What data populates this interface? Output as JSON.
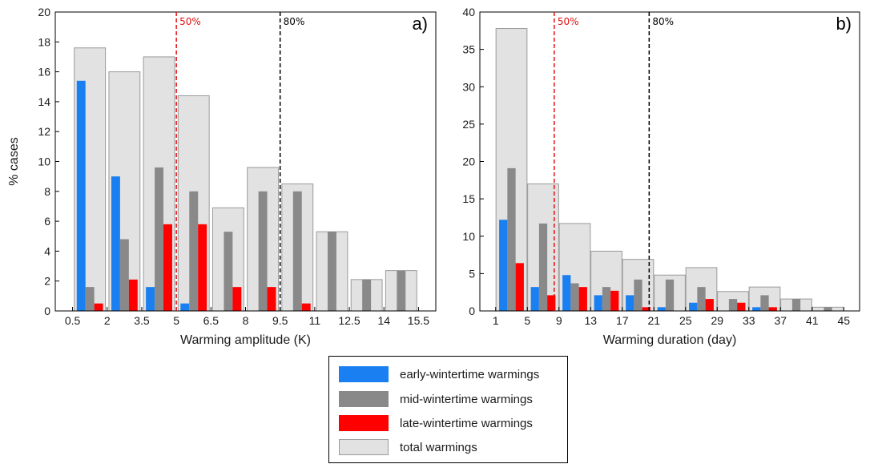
{
  "colors": {
    "early": "#1a7ff0",
    "mid": "#898989",
    "late": "#ff0000",
    "total": "#e2e2e2",
    "total_edge": "#9a9a9a",
    "line50": "#e01010",
    "line80": "#000000"
  },
  "legend": {
    "items": [
      {
        "key": "early",
        "label": "early-wintertime warmings"
      },
      {
        "key": "mid",
        "label": "mid-wintertime warmings"
      },
      {
        "key": "late",
        "label": "late-wintertime warmings"
      },
      {
        "key": "total",
        "label": "total warmings"
      }
    ]
  },
  "chart_data": [
    {
      "type": "bar",
      "panel_label": "a)",
      "xlabel": "Warming amplitude (K)",
      "ylabel": "% cases",
      "x_ticks": [
        "0.5",
        "2",
        "3.5",
        "5",
        "6.5",
        "8",
        "9.5",
        "11",
        "12.5",
        "14",
        "15.5"
      ],
      "ylim": [
        0,
        20
      ],
      "y_ticks": [
        0,
        2,
        4,
        6,
        8,
        10,
        12,
        14,
        16,
        18,
        20
      ],
      "bins": 10,
      "series": [
        {
          "key": "total",
          "values": [
            17.6,
            16.0,
            17.0,
            14.4,
            6.9,
            9.6,
            8.5,
            5.3,
            2.1,
            2.7
          ]
        },
        {
          "key": "early",
          "values": [
            15.4,
            9.0,
            1.6,
            0.5,
            0,
            0,
            0,
            0,
            0,
            0
          ]
        },
        {
          "key": "mid",
          "values": [
            1.6,
            4.8,
            9.6,
            8.0,
            5.3,
            8.0,
            8.0,
            5.3,
            2.1,
            2.7
          ]
        },
        {
          "key": "late",
          "values": [
            0.5,
            2.1,
            5.8,
            5.8,
            1.6,
            1.6,
            0.5,
            0,
            0,
            0
          ]
        }
      ],
      "vlines": [
        {
          "label": "50%",
          "x_bin": 3.0,
          "color_key": "line50"
        },
        {
          "label": "80%",
          "x_bin": 6.0,
          "color_key": "line80"
        }
      ],
      "grid": false
    },
    {
      "type": "bar",
      "panel_label": "b)",
      "xlabel": "Warming duration (day)",
      "ylabel": "",
      "x_ticks": [
        "1",
        "5",
        "9",
        "13",
        "17",
        "21",
        "25",
        "29",
        "33",
        "37",
        "41",
        "45"
      ],
      "ylim": [
        0,
        40
      ],
      "y_ticks": [
        0,
        5,
        10,
        15,
        20,
        25,
        30,
        35,
        40
      ],
      "bins": 11,
      "series": [
        {
          "key": "total",
          "values": [
            37.8,
            17.0,
            11.7,
            8.0,
            6.9,
            4.8,
            5.8,
            2.6,
            3.2,
            1.6,
            0.5
          ]
        },
        {
          "key": "early",
          "values": [
            12.2,
            3.2,
            4.8,
            2.1,
            2.1,
            0.5,
            1.1,
            0,
            0.5,
            0,
            0
          ]
        },
        {
          "key": "mid",
          "values": [
            19.1,
            11.7,
            3.7,
            3.2,
            4.2,
            4.2,
            3.2,
            1.6,
            2.1,
            1.6,
            0.5
          ]
        },
        {
          "key": "late",
          "values": [
            6.4,
            2.1,
            3.2,
            2.7,
            0.5,
            0,
            1.6,
            1.1,
            0.5,
            0,
            0
          ]
        }
      ],
      "vlines": [
        {
          "label": "50%",
          "x_bin": 1.85,
          "color_key": "line50"
        },
        {
          "label": "80%",
          "x_bin": 4.85,
          "color_key": "line80"
        }
      ],
      "grid": false
    }
  ]
}
